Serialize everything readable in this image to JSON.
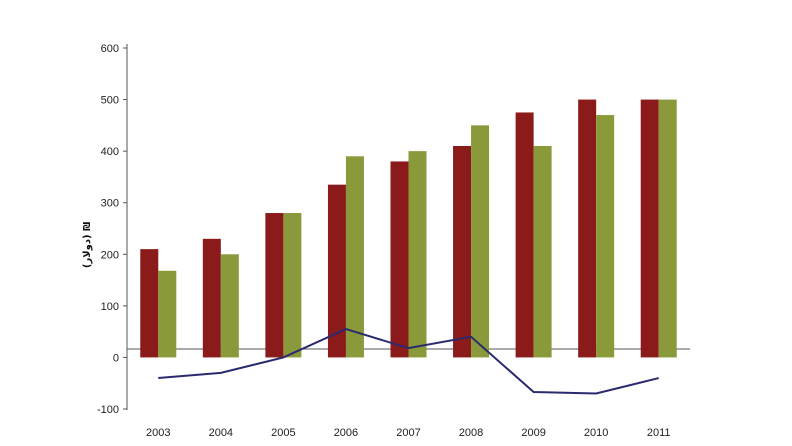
{
  "chart_data": {
    "type": "bar",
    "title": "",
    "xlabel": "",
    "ylabel": "(دولار) ₪",
    "ylim": [
      -100,
      600
    ],
    "yticks": [
      -100,
      0,
      100,
      200,
      300,
      400,
      500,
      600
    ],
    "categories": [
      "2003",
      "2004",
      "2005",
      "2006",
      "2007",
      "2008",
      "2009",
      "2010",
      "2011"
    ],
    "series": [
      {
        "type": "bar",
        "values": [
          210,
          230,
          280,
          335,
          380,
          410,
          475,
          500,
          500
        ],
        "color": "#8b1a1a"
      },
      {
        "type": "bar",
        "values": [
          168,
          200,
          280,
          390,
          400,
          450,
          410,
          470,
          500
        ],
        "color": "#8a9a3a"
      },
      {
        "type": "line",
        "values": [
          -40,
          -30,
          0,
          55,
          18,
          40,
          -67,
          -70,
          -40
        ],
        "color": "#2a2a6e"
      }
    ],
    "grid": false,
    "legend": "none"
  }
}
